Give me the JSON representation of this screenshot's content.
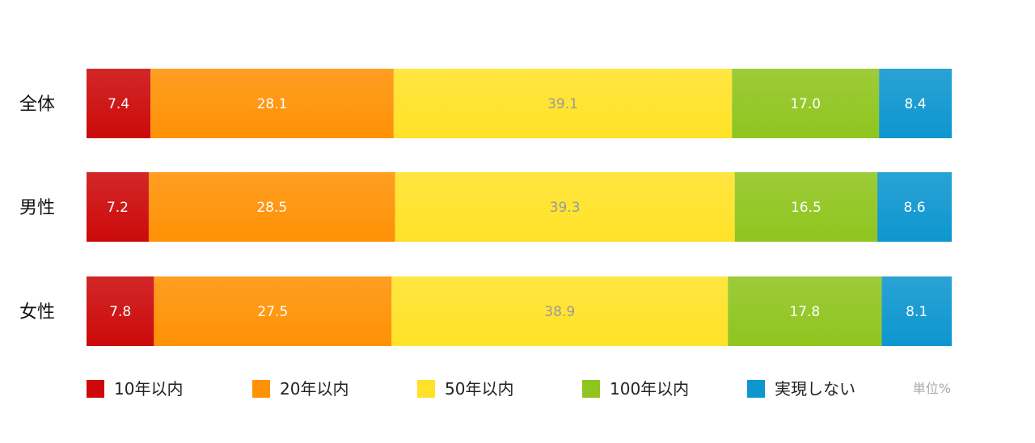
{
  "chart_data": {
    "type": "bar",
    "orientation": "horizontal",
    "stacked": true,
    "categories": [
      "全体",
      "男性",
      "女性"
    ],
    "series": [
      {
        "name": "10年以内",
        "values": [
          7.4,
          7.2,
          7.8
        ],
        "color": "#cc0a0a"
      },
      {
        "name": "20年以内",
        "values": [
          28.1,
          28.5,
          27.5
        ],
        "color": "#ff9104"
      },
      {
        "name": "50年以内",
        "values": [
          39.1,
          39.3,
          38.9
        ],
        "color": "#ffe227"
      },
      {
        "name": "100年以内",
        "values": [
          17.0,
          16.5,
          17.8
        ],
        "color": "#8fc51e"
      },
      {
        "name": "実現しない",
        "values": [
          8.4,
          8.6,
          8.1
        ],
        "color": "#0d96cf"
      }
    ],
    "unit_label": "単位%",
    "xlim": [
      0,
      100
    ],
    "legend": "bottom",
    "grid": false
  }
}
